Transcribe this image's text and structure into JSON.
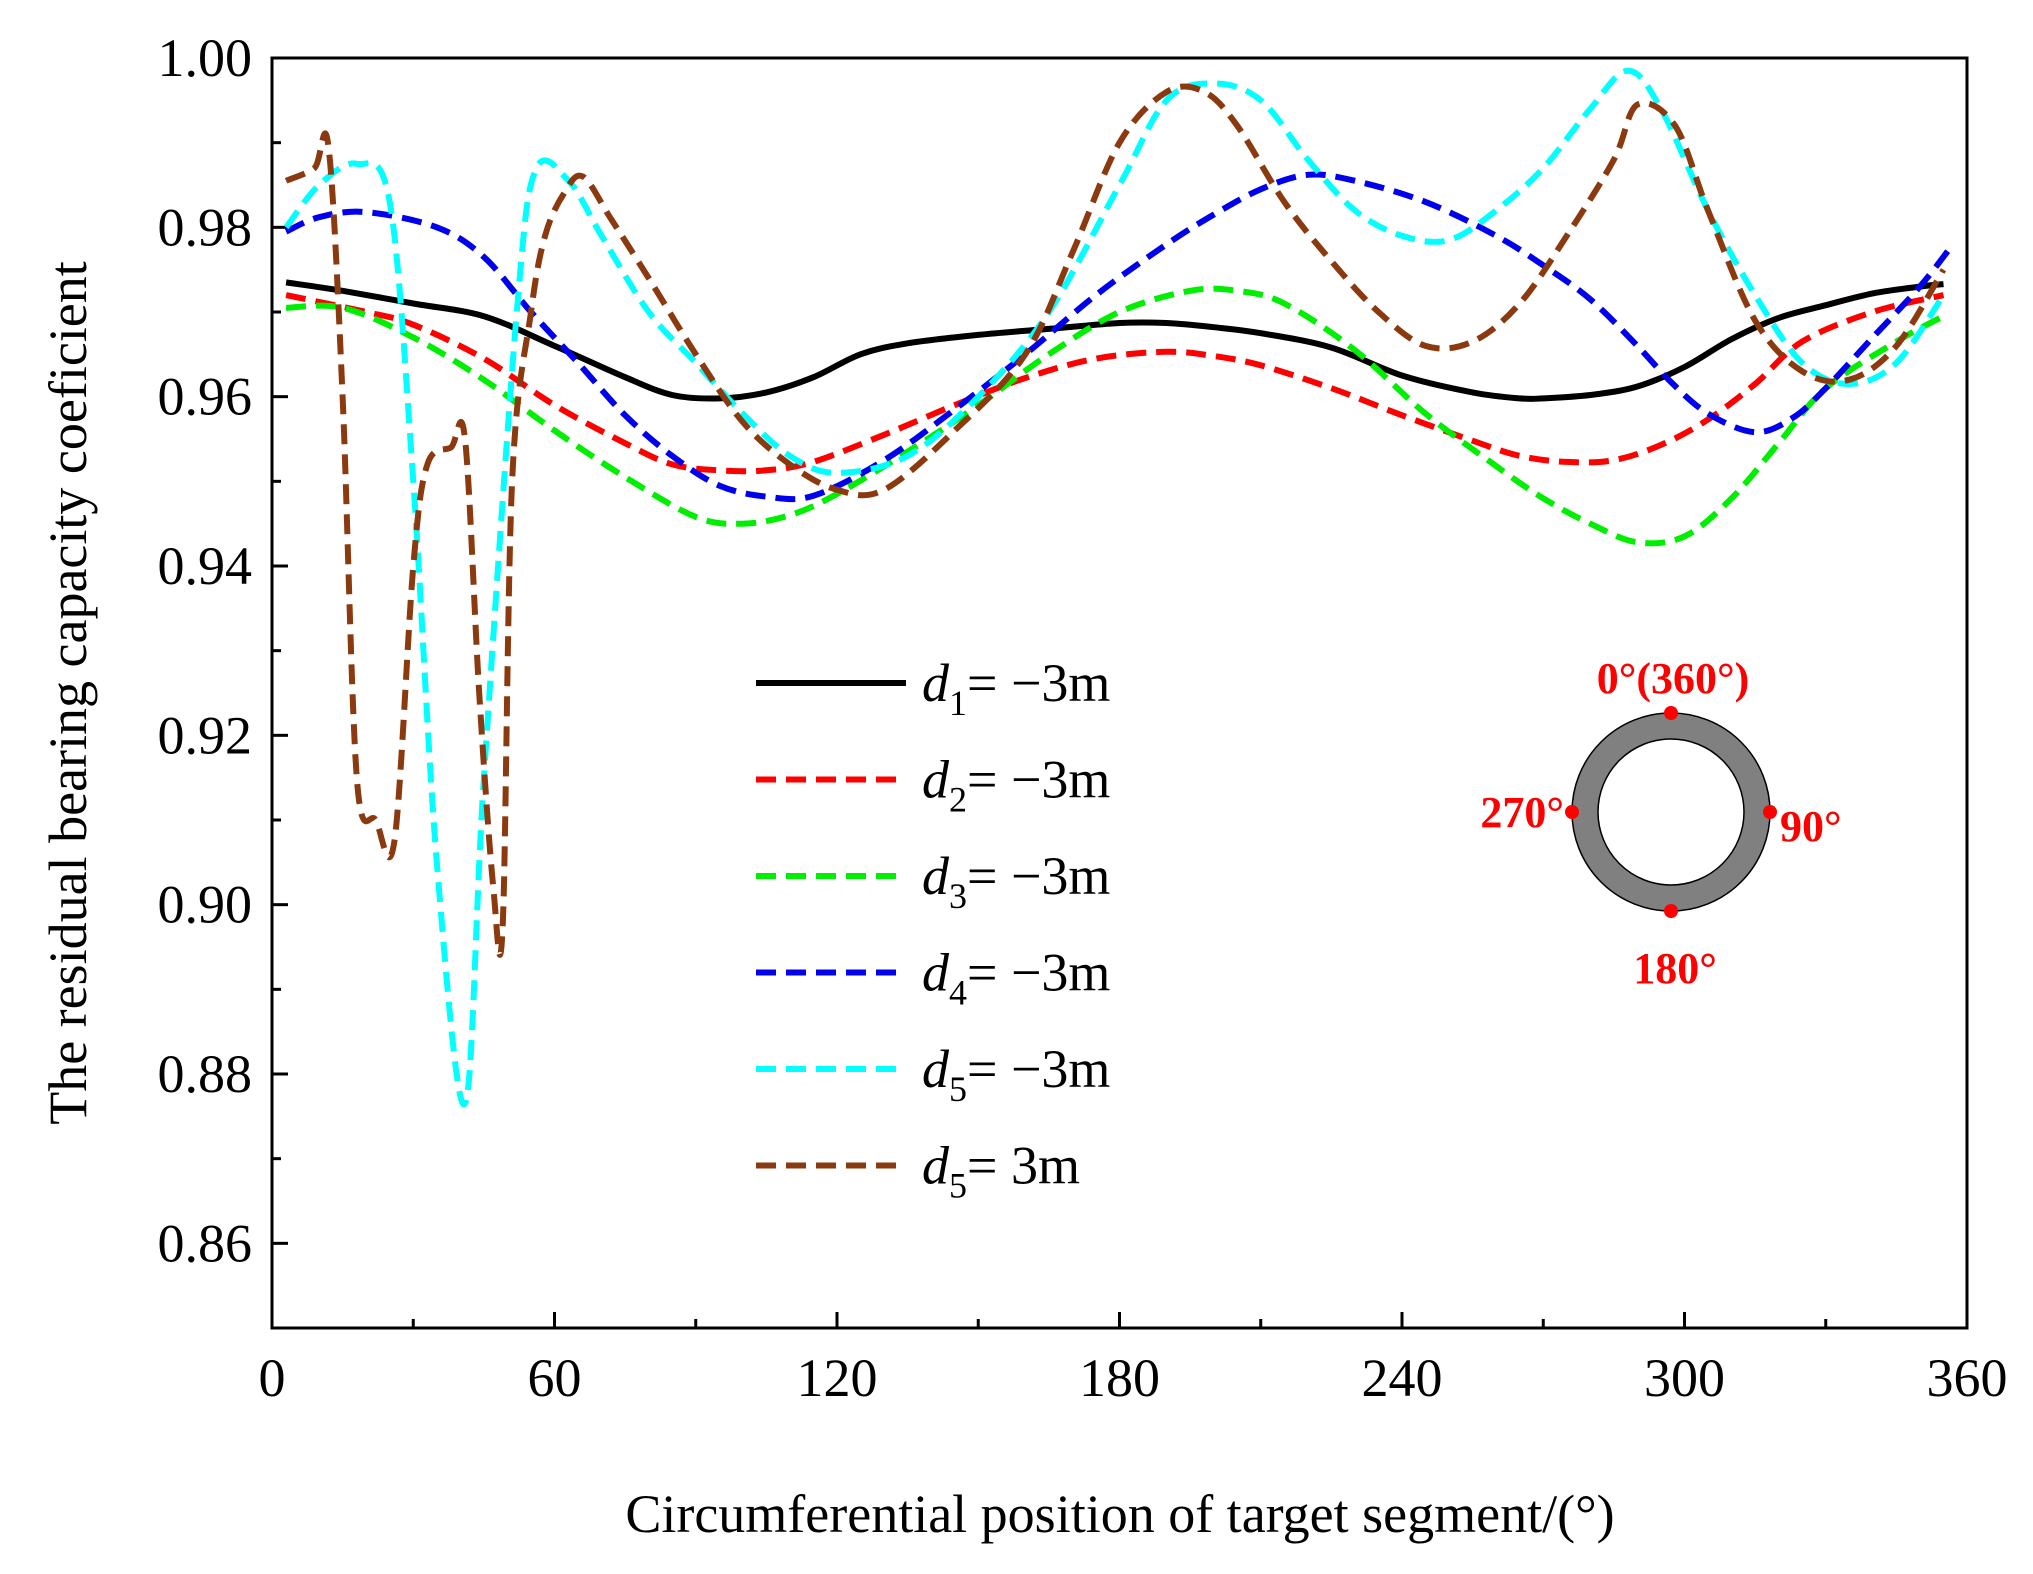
{
  "chart_data": {
    "type": "line",
    "title": "",
    "xlabel": "Circumferential position of target segment/(°)",
    "ylabel": "The residual bearing capacity coeficient",
    "xlim": [
      0,
      360
    ],
    "ylim": [
      0.85,
      1.0
    ],
    "xticks": [
      "0",
      "60",
      "120",
      "180",
      "240",
      "300",
      "360"
    ],
    "yticks": [
      "0.86",
      "0.88",
      "0.90",
      "0.92",
      "0.94",
      "0.96",
      "0.98",
      "1.00"
    ],
    "legend_position": "center",
    "series": [
      {
        "name": "d1 = −3m",
        "var": "d",
        "sub": "1",
        "rest": "= −3m",
        "color": "#000000",
        "style": "solid",
        "x": [
          3,
          15,
          30,
          45,
          60,
          75,
          85,
          95,
          105,
          115,
          125,
          135,
          150,
          165,
          180,
          190,
          200,
          210,
          225,
          240,
          255,
          265,
          270,
          280,
          290,
          300,
          310,
          320,
          330,
          340,
          350,
          355
        ],
        "y": [
          0.9735,
          0.9725,
          0.971,
          0.9695,
          0.966,
          0.9623,
          0.9602,
          0.9598,
          0.9605,
          0.9623,
          0.965,
          0.9663,
          0.9673,
          0.968,
          0.9687,
          0.9687,
          0.9682,
          0.9675,
          0.9658,
          0.9625,
          0.9605,
          0.9598,
          0.9598,
          0.9602,
          0.9612,
          0.9635,
          0.9668,
          0.9693,
          0.9708,
          0.9722,
          0.973,
          0.9733
        ]
      },
      {
        "name": "d2 = −3m",
        "var": "d",
        "sub": "2",
        "rest": "= −3m",
        "color": "#ff0000",
        "style": "dashed",
        "x": [
          3,
          20,
          30,
          45,
          60,
          75,
          85,
          95,
          105,
          115,
          130,
          145,
          160,
          175,
          190,
          200,
          210,
          225,
          240,
          255,
          265,
          275,
          285,
          295,
          305,
          315,
          325,
          340,
          355
        ],
        "y": [
          0.972,
          0.97,
          0.9685,
          0.9645,
          0.959,
          0.9545,
          0.952,
          0.9513,
          0.9513,
          0.9523,
          0.9555,
          0.959,
          0.9622,
          0.9645,
          0.9653,
          0.9648,
          0.9637,
          0.961,
          0.9578,
          0.9548,
          0.953,
          0.9523,
          0.9525,
          0.9543,
          0.9573,
          0.9615,
          0.9665,
          0.97,
          0.972
        ]
      },
      {
        "name": "d3 = −3m",
        "var": "d",
        "sub": "3",
        "rest": "= −3m",
        "color": "#00ee00",
        "style": "dashed",
        "x": [
          3,
          15,
          30,
          45,
          60,
          75,
          90,
          100,
          110,
          120,
          135,
          150,
          165,
          180,
          195,
          205,
          215,
          230,
          245,
          260,
          270,
          280,
          290,
          300,
          310,
          320,
          330,
          345,
          355
        ],
        "y": [
          0.9705,
          0.9705,
          0.967,
          0.962,
          0.956,
          0.9505,
          0.9458,
          0.945,
          0.946,
          0.9485,
          0.9535,
          0.959,
          0.965,
          0.97,
          0.9725,
          0.9725,
          0.971,
          0.9655,
          0.958,
          0.9518,
          0.948,
          0.945,
          0.9428,
          0.9435,
          0.948,
          0.9545,
          0.961,
          0.9665,
          0.9695
        ]
      },
      {
        "name": "d4 = −3m",
        "var": "d",
        "sub": "4",
        "rest": "= −3m",
        "color": "#0000ee",
        "style": "dashed",
        "x": [
          3,
          10,
          20,
          35,
          45,
          55,
          65,
          75,
          85,
          95,
          105,
          115,
          130,
          145,
          160,
          175,
          190,
          200,
          210,
          220,
          230,
          245,
          260,
          270,
          280,
          290,
          297,
          305,
          315,
          323,
          330,
          340,
          350,
          357
        ],
        "y": [
          0.9795,
          0.9812,
          0.9818,
          0.98,
          0.9765,
          0.97,
          0.964,
          0.9578,
          0.953,
          0.9495,
          0.9482,
          0.9483,
          0.9525,
          0.9585,
          0.965,
          0.972,
          0.978,
          0.9815,
          0.9845,
          0.9862,
          0.9855,
          0.983,
          0.979,
          0.9755,
          0.9715,
          0.966,
          0.9618,
          0.958,
          0.9558,
          0.9575,
          0.961,
          0.967,
          0.973,
          0.978
        ]
      },
      {
        "name": "d5 = −3m",
        "var": "d",
        "sub": "5",
        "rest": "= −3m",
        "color": "#00ffff",
        "style": "dashed",
        "x": [
          3,
          10,
          18,
          25,
          30,
          35,
          41,
          45,
          52,
          56,
          63,
          70,
          80,
          90,
          100,
          110,
          120,
          135,
          150,
          165,
          180,
          190,
          200,
          210,
          220,
          230,
          240,
          250,
          260,
          270,
          280,
          288,
          295,
          305,
          315,
          325,
          335,
          345,
          355
        ],
        "y": [
          0.98,
          0.985,
          0.9875,
          0.983,
          0.95,
          0.905,
          0.8765,
          0.915,
          0.97,
          0.9868,
          0.9855,
          0.979,
          0.97,
          0.964,
          0.958,
          0.953,
          0.951,
          0.953,
          0.96,
          0.97,
          0.985,
          0.995,
          0.997,
          0.995,
          0.988,
          0.982,
          0.979,
          0.9785,
          0.982,
          0.987,
          0.994,
          0.9985,
          0.994,
          0.982,
          0.972,
          0.964,
          0.9615,
          0.964,
          0.972
        ]
      },
      {
        "name": "d5 = 3m",
        "var": "d",
        "sub": "5",
        "rest": "= 3m",
        "color": "#8b3a0f",
        "style": "dashed",
        "x": [
          3,
          9,
          12,
          15,
          18,
          22,
          26,
          30,
          33,
          38,
          41,
          44,
          47,
          49,
          51,
          55,
          58,
          62,
          66,
          72,
          80,
          90,
          100,
          110,
          120,
          130,
          145,
          160,
          170,
          180,
          190,
          198,
          205,
          215,
          225,
          235,
          245,
          255,
          265,
          275,
          285,
          290,
          298,
          305,
          315,
          325,
          335,
          345,
          355
        ],
        "y": [
          0.9855,
          0.987,
          0.9895,
          0.96,
          0.915,
          0.91,
          0.9075,
          0.94,
          0.952,
          0.954,
          0.955,
          0.925,
          0.902,
          0.8975,
          0.95,
          0.97,
          0.979,
          0.984,
          0.986,
          0.981,
          0.974,
          0.965,
          0.957,
          0.952,
          0.949,
          0.949,
          0.956,
          0.965,
          0.977,
          0.99,
          0.996,
          0.996,
          0.992,
          0.983,
          0.976,
          0.97,
          0.966,
          0.9665,
          0.971,
          0.979,
          0.988,
          0.9945,
          0.992,
          0.982,
          0.969,
          0.963,
          0.962,
          0.966,
          0.975
        ]
      }
    ],
    "inset": {
      "labels": {
        "top": "0°(360°)",
        "right": "90°",
        "bottom": "180°",
        "left": "270°"
      },
      "ring_color": "#808080",
      "marker_color": "#ff0000"
    }
  }
}
